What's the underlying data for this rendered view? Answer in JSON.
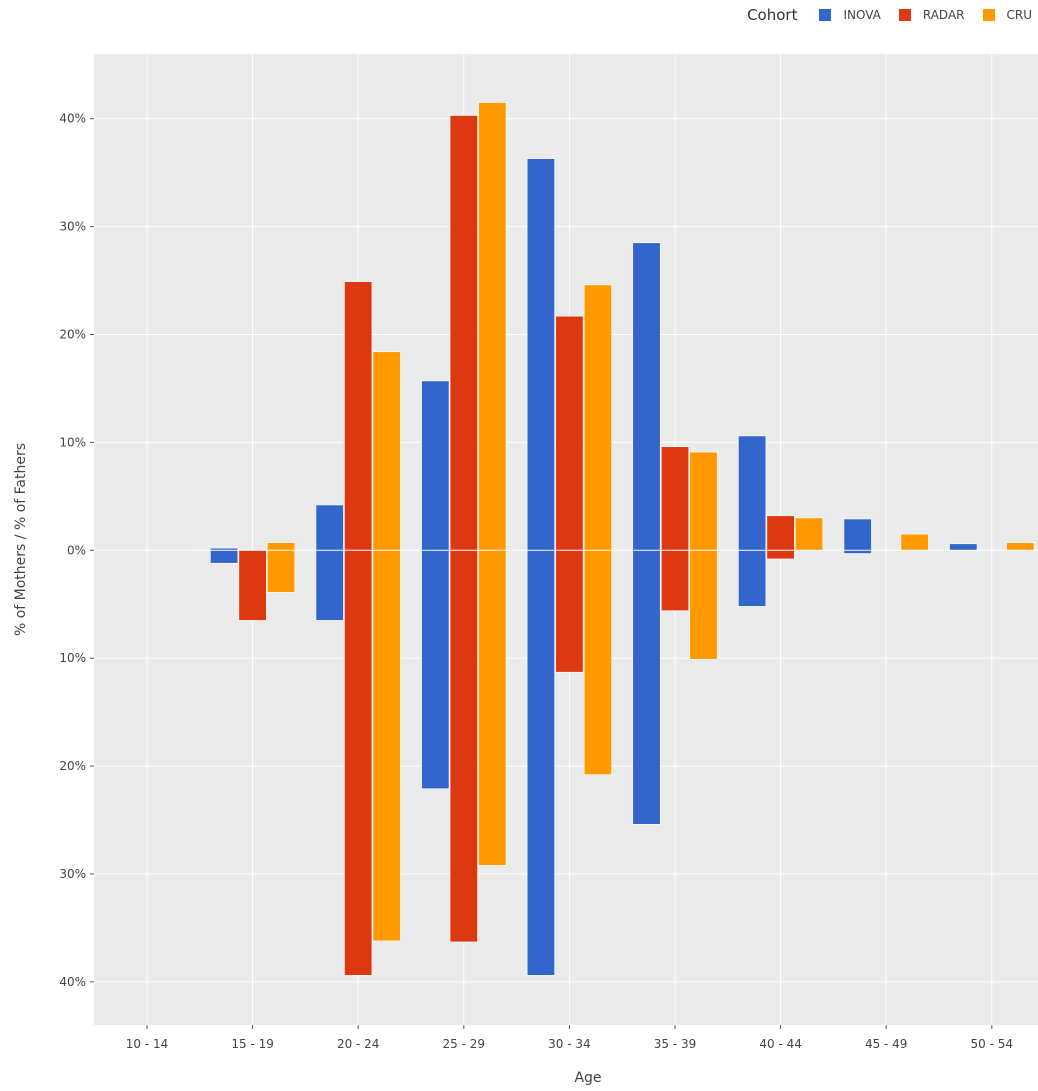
{
  "chart_data": {
    "type": "bar",
    "title": "",
    "xlabel": "Age",
    "ylabel": "% of Mothers / % of Fathers",
    "categories": [
      "10 - 14",
      "15 - 19",
      "20 - 24",
      "25 - 29",
      "30 - 34",
      "35 - 39",
      "40 - 44",
      "45 - 49",
      "50 - 54"
    ],
    "ylim": [
      -44,
      46
    ],
    "yticks": [
      40,
      30,
      20,
      10,
      0,
      -10,
      -20,
      -30,
      -40
    ],
    "ytick_labels": [
      "40%",
      "30%",
      "20%",
      "10%",
      "0%",
      "10%",
      "20%",
      "30%",
      "40%"
    ],
    "grid": true,
    "legend": {
      "title": "Cohort",
      "placement": "top-right"
    },
    "series": [
      {
        "name": "INOVA",
        "color": "#3366cc",
        "mothers": [
          0,
          0.2,
          4.2,
          15.7,
          36.3,
          28.5,
          10.6,
          2.9,
          0.6
        ],
        "fathers": [
          0,
          -1.2,
          -6.5,
          -22.1,
          -39.4,
          -25.4,
          -5.2,
          -0.3,
          0
        ]
      },
      {
        "name": "RADAR",
        "color": "#dc3912",
        "mothers": [
          0,
          0,
          24.9,
          40.3,
          21.7,
          9.6,
          3.2,
          0,
          0
        ],
        "fathers": [
          0,
          -6.5,
          -39.4,
          -36.3,
          -11.3,
          -5.6,
          -0.8,
          0,
          0
        ]
      },
      {
        "name": "CRU",
        "color": "#ff9900",
        "mothers": [
          0,
          0.7,
          18.4,
          41.5,
          24.6,
          9.1,
          3.0,
          1.5,
          0.7
        ],
        "fathers": [
          0,
          -3.9,
          -36.2,
          -29.2,
          -20.8,
          -10.1,
          0,
          0,
          0
        ]
      }
    ]
  }
}
